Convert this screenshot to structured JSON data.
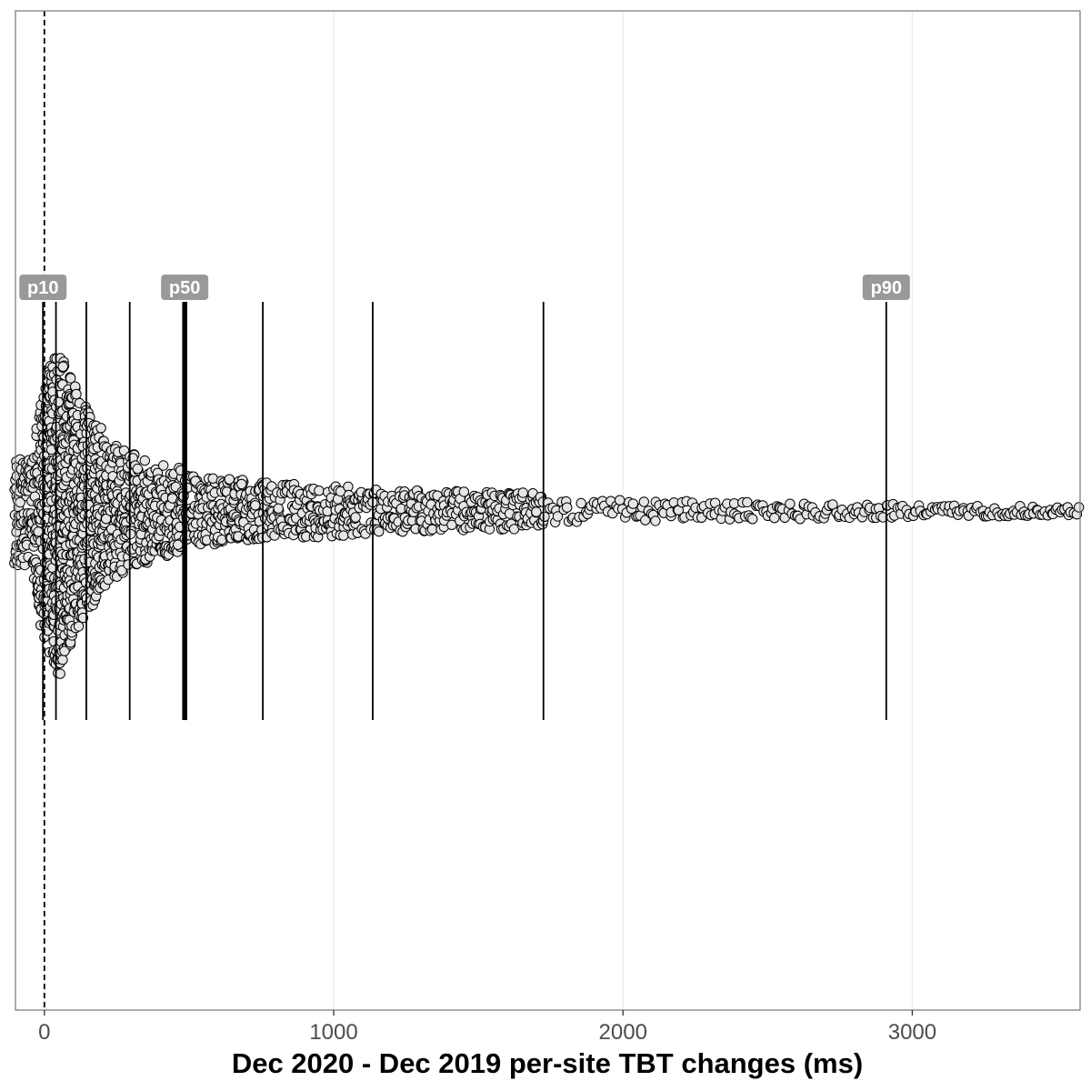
{
  "chart_data": {
    "type": "scatter",
    "subtype": "beeswarm",
    "title": "",
    "xlabel": "Dec 2020 - Dec 2019 per-site TBT changes (ms)",
    "ylabel": "",
    "xlim": [
      -100,
      3580
    ],
    "x_ticks": [
      0,
      1000,
      2000,
      3000
    ],
    "x_tick_labels": [
      "0",
      "1000",
      "2000",
      "3000"
    ],
    "grid": "vertical-major",
    "reference_line": {
      "x": 0,
      "style": "dashed"
    },
    "percentile_lines": [
      {
        "x": -5,
        "label": "p10"
      },
      {
        "x": 40
      },
      {
        "x": 145
      },
      {
        "x": 295
      },
      {
        "x": 485,
        "label": "p50",
        "emphasis": true
      },
      {
        "x": 755
      },
      {
        "x": 1135
      },
      {
        "x": 1725
      },
      {
        "x": 2910,
        "label": "p90"
      }
    ],
    "point_fill": "#e5e5e5",
    "point_stroke": "#000000",
    "badge_color": "#999999",
    "gridline_color": "#ebebeb",
    "panel_border_color": "#7f7f7f"
  }
}
